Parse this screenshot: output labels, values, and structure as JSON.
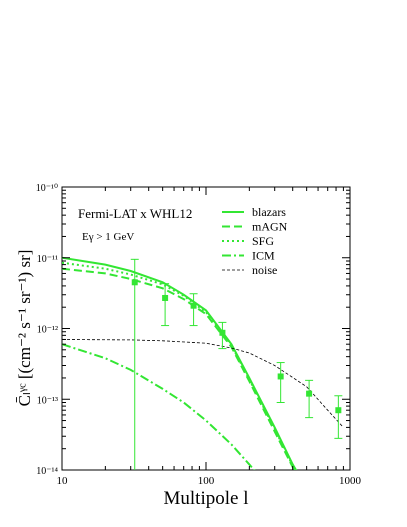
{
  "chart_data": {
    "type": "line",
    "title": "Fermi-LAT x WHL12",
    "annotation": "Eγ > 1 GeV",
    "xlabel": "Multipole l",
    "ylabel": "C̄ₗᵞᶜ [(cm⁻² s⁻¹ sr⁻¹) sr]",
    "xscale": "log",
    "yscale": "log",
    "xlim": [
      10,
      1000
    ],
    "ylim": [
      1e-14,
      1e-10
    ],
    "xticks": [
      10,
      100,
      1000
    ],
    "yticks": [
      {
        "value": 1e-14,
        "label": "10⁻¹⁴"
      },
      {
        "value": 1e-13,
        "label": "10⁻¹³"
      },
      {
        "value": 1e-12,
        "label": "10⁻¹²"
      },
      {
        "value": 1e-11,
        "label": "10⁻¹¹"
      },
      {
        "value": 1e-10,
        "label": "10⁻¹⁰"
      }
    ],
    "legend": "upper right",
    "series": [
      {
        "name": "blazars",
        "color": "#33e633",
        "style": "solid",
        "x": [
          10,
          20,
          30,
          50,
          70,
          100,
          150,
          200,
          300,
          400,
          450
        ],
        "values": [
          1e-11,
          8e-12,
          6.5e-12,
          4.5e-12,
          3e-12,
          1.8e-12,
          6e-13,
          2e-13,
          4e-14,
          1.2e-14,
          8e-15
        ]
      },
      {
        "name": "mAGN",
        "color": "#33e633",
        "style": "dashed",
        "x": [
          10,
          20,
          30,
          50,
          70,
          100,
          150,
          200,
          300,
          400,
          450
        ],
        "values": [
          7e-12,
          6e-12,
          5e-12,
          3.7e-12,
          2.6e-12,
          1.6e-12,
          5.5e-13,
          1.8e-13,
          3.5e-14,
          1.1e-14,
          7e-15
        ]
      },
      {
        "name": "SFG",
        "color": "#33e633",
        "style": "dotted",
        "x": [
          10,
          20,
          30,
          50,
          70,
          100,
          150,
          200,
          300,
          400,
          450
        ],
        "values": [
          8.5e-12,
          7e-12,
          5.8e-12,
          4.2e-12,
          2.9e-12,
          1.7e-12,
          5.8e-13,
          1.9e-13,
          3.8e-14,
          1.15e-14,
          7.5e-15
        ]
      },
      {
        "name": "ICM",
        "color": "#33e633",
        "style": "dashdot",
        "x": [
          10,
          20,
          30,
          50,
          70,
          100,
          150,
          200,
          250
        ],
        "values": [
          6e-13,
          3.8e-13,
          2.6e-13,
          1.4e-13,
          9e-14,
          5e-14,
          2.3e-14,
          1.2e-14,
          7e-15
        ]
      },
      {
        "name": "noise",
        "color": "#000000",
        "style": "thin-dashed",
        "x": [
          10,
          30,
          50,
          100,
          150,
          200,
          300,
          500,
          700,
          900
        ],
        "values": [
          7e-13,
          6.9e-13,
          6.7e-13,
          6.2e-13,
          5.3e-13,
          4.5e-13,
          3e-13,
          1.5e-13,
          7e-14,
          4e-14
        ]
      }
    ],
    "points": {
      "color": "#33e633",
      "x": [
        32,
        52,
        82,
        130,
        330,
        520,
        830
      ],
      "values": [
        4.5e-12,
        2.7e-12,
        2.1e-12,
        8.7e-13,
        2.1e-13,
        1.2e-13,
        7e-14
      ],
      "errors": [
        5e-12,
        1.6e-12,
        1e-12,
        3.5e-13,
        1.2e-13,
        6.5e-14,
        4.2e-14
      ]
    }
  }
}
